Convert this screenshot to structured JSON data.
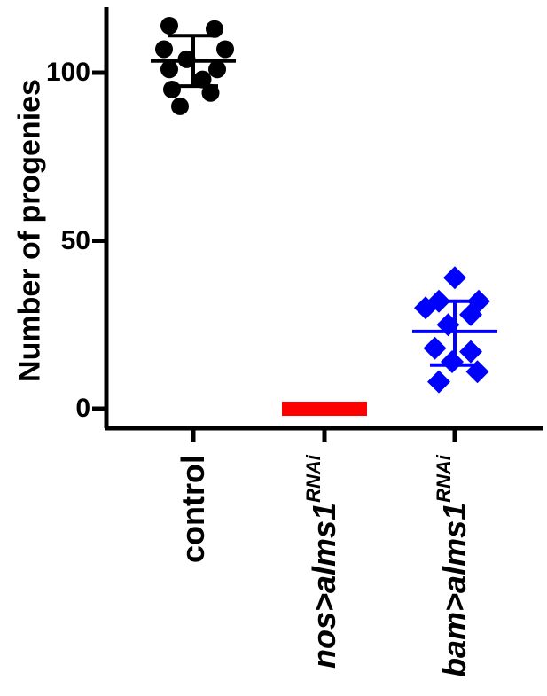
{
  "chart_data": {
    "type": "scatter",
    "title": "",
    "ylabel": "Number of progenies",
    "xlabel": "",
    "ylim": [
      0,
      120
    ],
    "yticks": [
      {
        "value": 0,
        "label": "0"
      },
      {
        "value": 50,
        "label": "50"
      },
      {
        "value": 100,
        "label": "100"
      }
    ],
    "categories": [
      {
        "label": "control",
        "italic": false,
        "sup": ""
      },
      {
        "label": "nos>alms1",
        "italic": true,
        "sup": "RNAi"
      },
      {
        "label": "bam>alms1",
        "italic": true,
        "sup": "RNAi"
      }
    ],
    "groups": [
      {
        "marker": "circle",
        "color": "#000000",
        "mean": 103.5,
        "sd_upper": 111,
        "sd_lower": 96,
        "points": [
          {
            "dx": -0.18,
            "y": 114
          },
          {
            "dx": 0.16,
            "y": 113
          },
          {
            "dx": -0.22,
            "y": 107
          },
          {
            "dx": 0.24,
            "y": 107
          },
          {
            "dx": -0.05,
            "y": 104
          },
          {
            "dx": -0.18,
            "y": 101
          },
          {
            "dx": 0.18,
            "y": 101
          },
          {
            "dx": 0.07,
            "y": 98
          },
          {
            "dx": -0.16,
            "y": 95
          },
          {
            "dx": 0.13,
            "y": 94
          },
          {
            "dx": -0.1,
            "y": 90
          }
        ]
      },
      {
        "marker": "square",
        "color": "#ff0000",
        "mean": 0,
        "sd_upper": 0,
        "sd_lower": 0,
        "points": [
          {
            "dx": -0.2,
            "y": 0
          },
          {
            "dx": -0.13,
            "y": 0
          },
          {
            "dx": -0.06,
            "y": 0
          },
          {
            "dx": 0.0,
            "y": 0
          },
          {
            "dx": 0.06,
            "y": 0
          },
          {
            "dx": 0.13,
            "y": 0
          },
          {
            "dx": 0.2,
            "y": 0
          }
        ]
      },
      {
        "marker": "diamond",
        "color": "#0000ff",
        "mean": 23,
        "sd_upper": 32,
        "sd_lower": 13,
        "points": [
          {
            "dx": 0.0,
            "y": 39
          },
          {
            "dx": -0.12,
            "y": 32
          },
          {
            "dx": 0.18,
            "y": 32
          },
          {
            "dx": -0.22,
            "y": 30
          },
          {
            "dx": 0.12,
            "y": 28
          },
          {
            "dx": -0.05,
            "y": 25
          },
          {
            "dx": -0.15,
            "y": 18
          },
          {
            "dx": 0.12,
            "y": 17
          },
          {
            "dx": -0.02,
            "y": 14
          },
          {
            "dx": 0.17,
            "y": 11
          },
          {
            "dx": -0.12,
            "y": 8
          }
        ]
      }
    ],
    "grid": false,
    "legend": "none"
  }
}
